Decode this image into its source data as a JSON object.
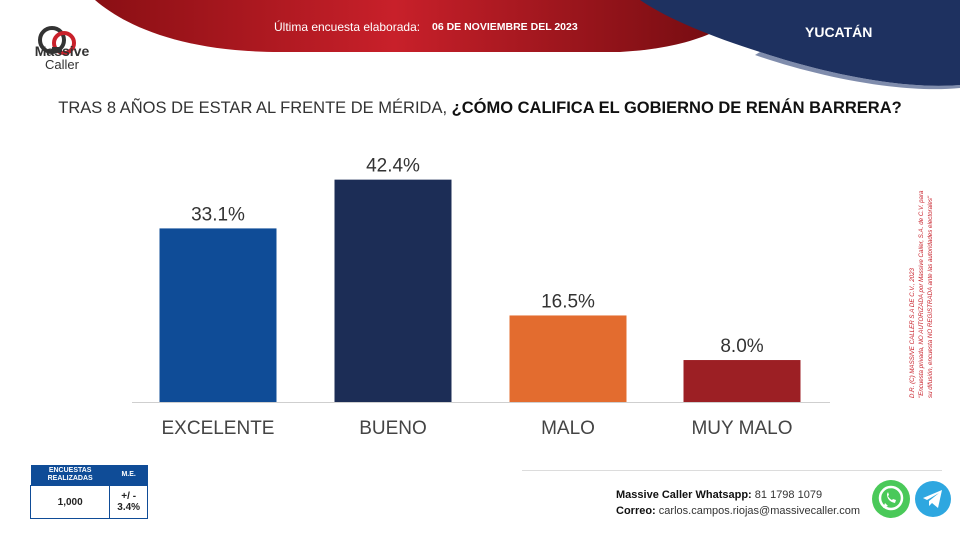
{
  "brand": {
    "name": "Massive",
    "sub": "Caller"
  },
  "header": {
    "survey_label": "Última encuesta elaborada:",
    "survey_date": "06 DE NOVIEMBRE DEL 2023",
    "region": "YUCATÁN"
  },
  "question": {
    "prefix": "TRAS 8 AÑOS DE ESTAR AL FRENTE DE MÉRIDA, ",
    "bold": "¿CÓMO CALIFICA EL GOBIERNO DE RENÁN BARRERA?"
  },
  "chart_data": {
    "type": "bar",
    "categories": [
      "EXCELENTE",
      "BUENO",
      "MALO",
      "MUY MALO"
    ],
    "values": [
      33.1,
      42.4,
      16.5,
      8.0
    ],
    "value_labels": [
      "33.1%",
      "42.4%",
      "16.5%",
      "8.0%"
    ],
    "colors": [
      "#0f4c97",
      "#1c2d56",
      "#e36c2f",
      "#9c1f24"
    ],
    "ylim": [
      0,
      45
    ],
    "grid": false,
    "legend": "none"
  },
  "legal": {
    "line1": "D.R. (C) MASSIVE CALLER S.A DE C.V., 2023",
    "line2": "\"Encuesta privada, NO AUTORIZADA por Massive Caller, S.A. de C.V. para",
    "line3": "su difusión, encuesta NO REGISTRADA ante las autoridades electorales\""
  },
  "sample": {
    "header_left": "ENCUESTAS REALIZADAS",
    "header_right": "M.E.",
    "count": "1,000",
    "margin": "+/ - 3.4%"
  },
  "contact": {
    "phone_label": "Massive Caller Whatsapp:",
    "phone": "81 1798 1079",
    "email_label": "Correo:",
    "email": "carlos.campos.riojas@massivecaller.com"
  },
  "icons": {
    "whatsapp": "whatsapp-icon",
    "telegram": "telegram-icon"
  },
  "colors": {
    "red_banner": "#b3161e",
    "navy_banner": "#1e3160",
    "whatsapp": "#4ac959",
    "telegram": "#2ea7e0"
  }
}
